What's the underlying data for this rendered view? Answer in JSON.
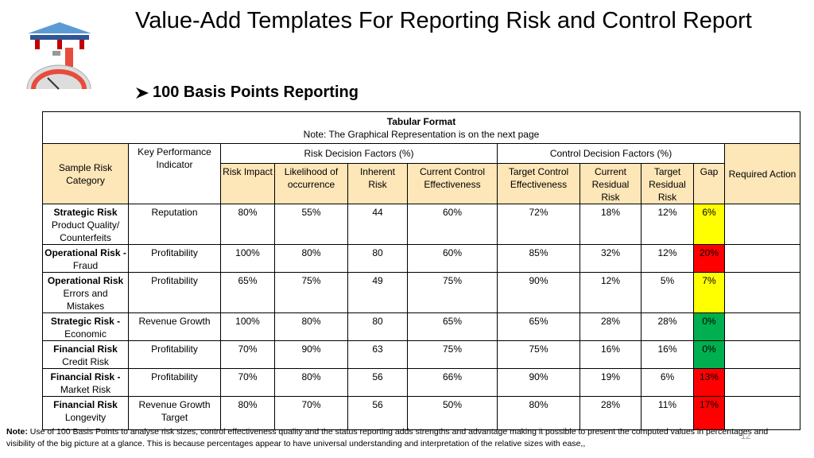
{
  "header": {
    "title": "Value-Add Templates For Reporting Risk and Control Report",
    "subtitle": "100 Basis Points Reporting"
  },
  "table": {
    "caption": "Tabular Format",
    "caption_note": "Note: The Graphical Representation is on the next page",
    "columns": {
      "category": "Sample Risk Category",
      "kpi": "Key Performance Indicator",
      "risk_group": "Risk Decision Factors (%)",
      "control_group": "Control Decision Factors (%)",
      "action": "Required Action",
      "risk": [
        "Risk Impact",
        "Likelihood of occurrence",
        "Inherent Risk",
        "Current Control Effectiveness"
      ],
      "control": [
        "Target Control Effectiveness",
        "Current Residual Risk",
        "Target Residual Risk",
        "Gap"
      ]
    },
    "rows": [
      {
        "category_title": "Strategic Risk",
        "category_detail": "Product Quality/ Counterfeits",
        "kpi": "Reputation",
        "values": [
          "80%",
          "55%",
          "44",
          "60%",
          "72%",
          "18%",
          "12%",
          "6%"
        ],
        "gap_color": "#ffff00"
      },
      {
        "category_title": "Operational Risk -",
        "category_detail": "Fraud",
        "kpi": "Profitability",
        "values": [
          "100%",
          "80%",
          "80",
          "60%",
          "85%",
          "32%",
          "12%",
          "20%"
        ],
        "gap_color": "#ff0000"
      },
      {
        "category_title": "Operational Risk",
        "category_detail": "Errors and Mistakes",
        "kpi": "Profitability",
        "values": [
          "65%",
          "75%",
          "49",
          "75%",
          "90%",
          "12%",
          "5%",
          "7%"
        ],
        "gap_color": "#ffff00"
      },
      {
        "category_title": "Strategic Risk -",
        "category_detail": "Economic",
        "kpi": "Revenue Growth",
        "values": [
          "100%",
          "80%",
          "80",
          "65%",
          "65%",
          "28%",
          "28%",
          "0%"
        ],
        "gap_color": "#00b050"
      },
      {
        "category_title": "Financial  Risk",
        "category_detail": "Credit Risk",
        "kpi": "Profitability",
        "values": [
          "70%",
          "90%",
          "63",
          "75%",
          "75%",
          "16%",
          "16%",
          "0%"
        ],
        "gap_color": "#00b050"
      },
      {
        "category_title": "Financial Risk -",
        "category_detail": "Market Risk",
        "kpi": "Profitability",
        "values": [
          "70%",
          "80%",
          "56",
          "66%",
          "90%",
          "19%",
          "6%",
          "13%"
        ],
        "gap_color": "#ff0000"
      },
      {
        "category_title": "Financial  Risk",
        "category_detail": "Longevity",
        "kpi": "Revenue Growth Target",
        "values": [
          "80%",
          "70%",
          "56",
          "50%",
          "80%",
          "28%",
          "11%",
          "17%"
        ],
        "gap_color": "#ff0000"
      }
    ]
  },
  "footer": {
    "note_label": "Note:",
    "note": "Use of 100 Basis Points  to analyse risk sizes, control effectiveness quality and  the status reporting  adds strengths and advantage making it  possible to present  the computed values in percentages and visibility of the big picture at a glance. This is because percentages appear to  have universal understanding and interpretation of the relative sizes with ease,,",
    "page": "12"
  }
}
